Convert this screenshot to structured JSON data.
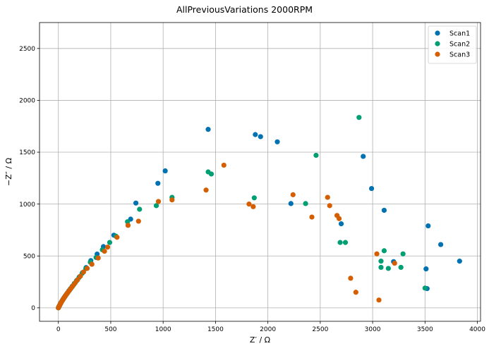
{
  "chart_data": {
    "type": "scatter",
    "title": "AllPreviousVariations 2000RPM",
    "xlabel": "Z′ / Ω",
    "ylabel": "−Z″ / Ω",
    "xlim": [
      -180,
      4030
    ],
    "ylim": [
      -130,
      2750
    ],
    "xticks": [
      0,
      500,
      1000,
      1500,
      2000,
      2500,
      3000,
      3500,
      4000
    ],
    "yticks": [
      0,
      500,
      1000,
      1500,
      2000,
      2500
    ],
    "grid": true,
    "legend_position": "top-right",
    "series": [
      {
        "name": "Scan1",
        "color": "#0072b2",
        "points": [
          [
            0,
            0
          ],
          [
            4,
            8
          ],
          [
            8,
            16
          ],
          [
            13,
            26
          ],
          [
            18,
            37
          ],
          [
            24,
            48
          ],
          [
            31,
            60
          ],
          [
            38,
            72
          ],
          [
            46,
            85
          ],
          [
            55,
            99
          ],
          [
            65,
            114
          ],
          [
            76,
            129
          ],
          [
            88,
            146
          ],
          [
            101,
            165
          ],
          [
            116,
            185
          ],
          [
            133,
            208
          ],
          [
            152,
            234
          ],
          [
            175,
            264
          ],
          [
            200,
            298
          ],
          [
            230,
            338
          ],
          [
            265,
            388
          ],
          [
            310,
            455
          ],
          [
            370,
            518
          ],
          [
            430,
            590
          ],
          [
            530,
            700
          ],
          [
            690,
            855
          ],
          [
            740,
            1010
          ],
          [
            950,
            1200
          ],
          [
            1020,
            1320
          ],
          [
            1430,
            1720
          ],
          [
            1880,
            1670
          ],
          [
            1930,
            1650
          ],
          [
            2090,
            1600
          ],
          [
            2220,
            1005
          ],
          [
            2700,
            810
          ],
          [
            2910,
            1460
          ],
          [
            2990,
            1150
          ],
          [
            3110,
            940
          ],
          [
            3200,
            445
          ],
          [
            3510,
            375
          ],
          [
            3520,
            185
          ],
          [
            3530,
            790
          ],
          [
            3650,
            610
          ],
          [
            3830,
            450
          ]
        ]
      },
      {
        "name": "Scan2",
        "color": "#009e73",
        "points": [
          [
            0,
            0
          ],
          [
            3,
            7
          ],
          [
            7,
            14
          ],
          [
            12,
            23
          ],
          [
            17,
            33
          ],
          [
            23,
            44
          ],
          [
            29,
            55
          ],
          [
            36,
            67
          ],
          [
            44,
            80
          ],
          [
            53,
            94
          ],
          [
            63,
            109
          ],
          [
            74,
            125
          ],
          [
            86,
            141
          ],
          [
            99,
            160
          ],
          [
            114,
            180
          ],
          [
            131,
            202
          ],
          [
            150,
            228
          ],
          [
            172,
            258
          ],
          [
            197,
            292
          ],
          [
            227,
            332
          ],
          [
            262,
            378
          ],
          [
            305,
            440
          ],
          [
            360,
            485
          ],
          [
            420,
            560
          ],
          [
            490,
            630
          ],
          [
            550,
            690
          ],
          [
            660,
            830
          ],
          [
            775,
            950
          ],
          [
            935,
            985
          ],
          [
            1085,
            1065
          ],
          [
            1430,
            1310
          ],
          [
            1460,
            1290
          ],
          [
            1870,
            1060
          ],
          [
            2360,
            1005
          ],
          [
            2460,
            1470
          ],
          [
            2690,
            630
          ],
          [
            2740,
            630
          ],
          [
            2870,
            1835
          ],
          [
            3080,
            390
          ],
          [
            3080,
            450
          ],
          [
            3110,
            550
          ],
          [
            3150,
            380
          ],
          [
            3270,
            390
          ],
          [
            3290,
            520
          ],
          [
            3500,
            190
          ]
        ]
      },
      {
        "name": "Scan3",
        "color": "#d55e00",
        "points": [
          [
            0,
            0
          ],
          [
            4,
            9
          ],
          [
            9,
            18
          ],
          [
            14,
            28
          ],
          [
            20,
            39
          ],
          [
            26,
            50
          ],
          [
            33,
            62
          ],
          [
            41,
            75
          ],
          [
            49,
            88
          ],
          [
            59,
            103
          ],
          [
            69,
            118
          ],
          [
            80,
            134
          ],
          [
            93,
            151
          ],
          [
            107,
            170
          ],
          [
            122,
            190
          ],
          [
            140,
            213
          ],
          [
            160,
            240
          ],
          [
            183,
            270
          ],
          [
            210,
            305
          ],
          [
            240,
            345
          ],
          [
            275,
            380
          ],
          [
            320,
            420
          ],
          [
            380,
            480
          ],
          [
            440,
            545
          ],
          [
            470,
            585
          ],
          [
            560,
            680
          ],
          [
            665,
            795
          ],
          [
            765,
            835
          ],
          [
            955,
            1025
          ],
          [
            1085,
            1040
          ],
          [
            1410,
            1135
          ],
          [
            1580,
            1375
          ],
          [
            1820,
            1000
          ],
          [
            1860,
            975
          ],
          [
            2240,
            1090
          ],
          [
            2420,
            875
          ],
          [
            2570,
            1065
          ],
          [
            2590,
            985
          ],
          [
            2660,
            890
          ],
          [
            2680,
            860
          ],
          [
            2790,
            285
          ],
          [
            2840,
            150
          ],
          [
            3040,
            520
          ],
          [
            3060,
            75
          ],
          [
            3210,
            430
          ]
        ]
      }
    ]
  }
}
